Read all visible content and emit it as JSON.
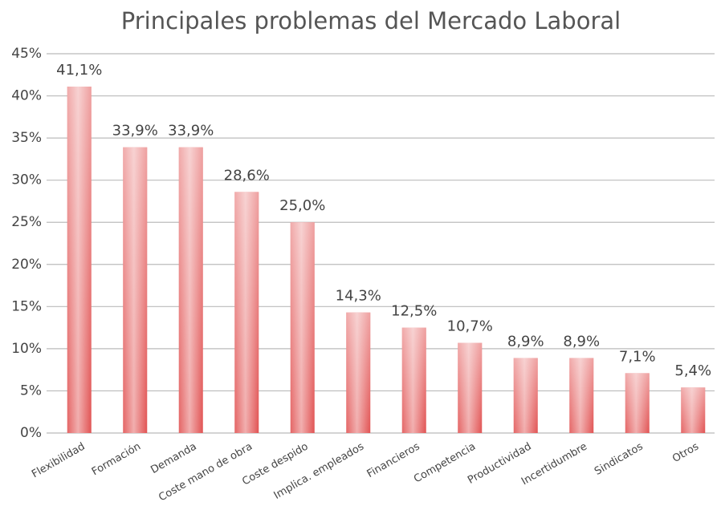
{
  "chart_data": {
    "type": "bar",
    "title": "Principales problemas del Mercado Laboral",
    "categories": [
      "Flexibilidad",
      "Formación",
      "Demanda",
      "Coste mano de obra",
      "Coste despido",
      "Implica. empleados",
      "Financieros",
      "Competencia",
      "Productividad",
      "Incertidumbre",
      "Sindicatos",
      "Otros"
    ],
    "values": [
      41.1,
      33.9,
      33.9,
      28.6,
      25.0,
      14.3,
      12.5,
      10.7,
      8.9,
      8.9,
      7.1,
      5.4
    ],
    "value_labels": [
      "41,1%",
      "33,9%",
      "33,9%",
      "28,6%",
      "25,0%",
      "14,3%",
      "12,5%",
      "10,7%",
      "8,9%",
      "8,9%",
      "7,1%",
      "5,4%"
    ],
    "color": "#e04a4a",
    "ylim": [
      0,
      45
    ],
    "yticks": [
      {
        "value": 0,
        "label": "0%"
      },
      {
        "value": 5,
        "label": "5%"
      },
      {
        "value": 10,
        "label": "10%"
      },
      {
        "value": 15,
        "label": "15%"
      },
      {
        "value": 20,
        "label": "20%"
      },
      {
        "value": 25,
        "label": "25%"
      },
      {
        "value": 30,
        "label": "30%"
      },
      {
        "value": 35,
        "label": "35%"
      },
      {
        "value": 40,
        "label": "40%"
      },
      {
        "value": 45,
        "label": "45%"
      }
    ],
    "grid": true
  }
}
